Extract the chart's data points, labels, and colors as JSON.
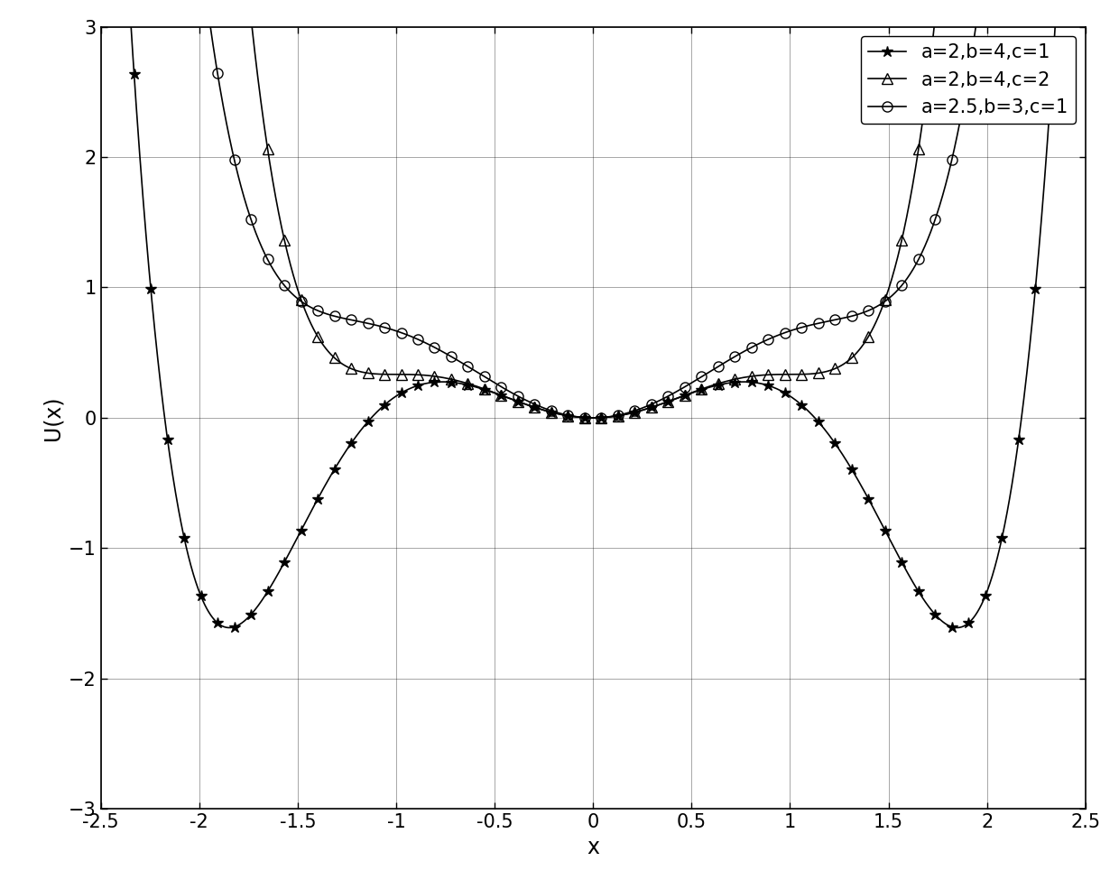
{
  "title": "",
  "xlabel": "x",
  "ylabel": "U(x)",
  "xlim": [
    -2.5,
    2.5
  ],
  "ylim": [
    -3,
    3
  ],
  "xticks": [
    -2.5,
    -2.0,
    -1.5,
    -1.0,
    -0.5,
    0.0,
    0.5,
    1.0,
    1.5,
    2.0,
    2.5
  ],
  "xticklabels": [
    "-2.5",
    "-2",
    "-1.5",
    "-1",
    "-0.5",
    "0",
    "0.5",
    "1",
    "1.5",
    "2",
    "2.5"
  ],
  "yticks": [
    -3,
    -2,
    -1,
    0,
    1,
    2,
    3
  ],
  "series": [
    {
      "a": 2.0,
      "b": 4.0,
      "c": 1.0,
      "label": "a=2,b=4,c=1",
      "marker": "*",
      "markersize": 9,
      "linewidth": 1.2,
      "markerfacecolor": "black"
    },
    {
      "a": 2.0,
      "b": 4.0,
      "c": 2.0,
      "label": "a=2,b=4,c=2",
      "marker": "^",
      "markersize": 8,
      "linewidth": 1.2,
      "markerfacecolor": "none"
    },
    {
      "a": 2.5,
      "b": 3.0,
      "c": 1.0,
      "label": "a=2.5,b=3,c=1",
      "marker": "o",
      "markersize": 8,
      "linewidth": 1.2,
      "markerfacecolor": "none"
    }
  ],
  "line_color": "black",
  "background_color": "white",
  "grid": true,
  "legend_fontsize": 15,
  "axis_fontsize": 17,
  "tick_fontsize": 15,
  "n_sparse": 60,
  "n_dense": 2000
}
